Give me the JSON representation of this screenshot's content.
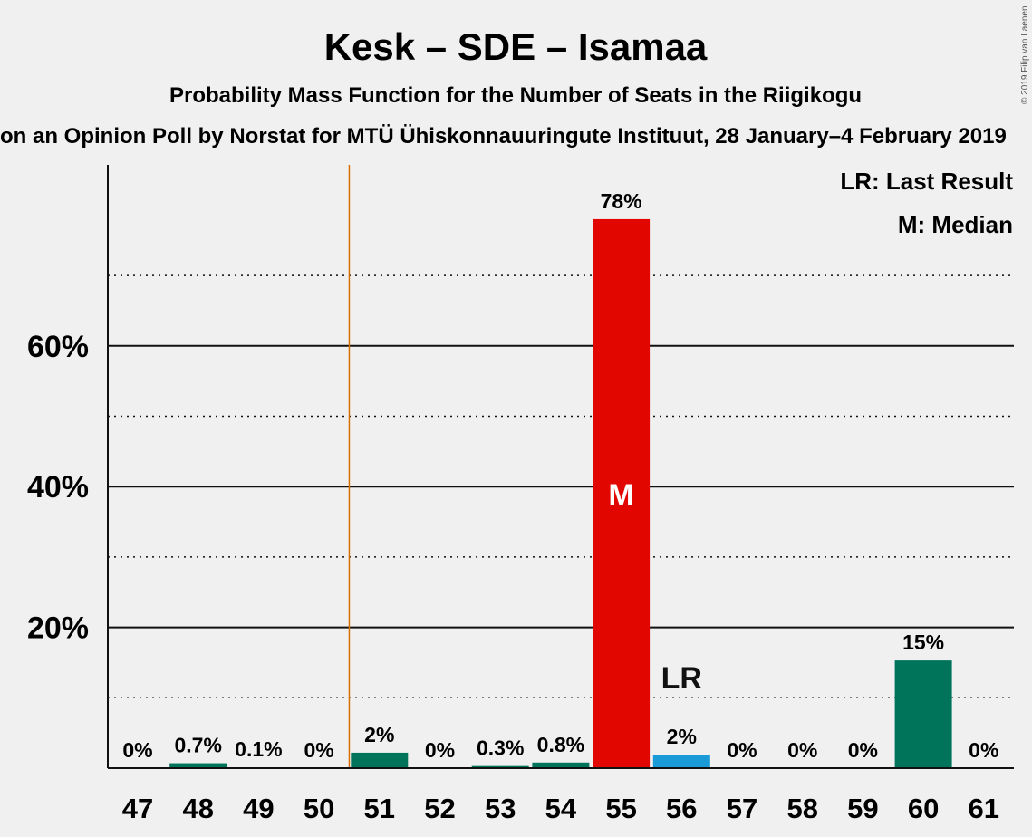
{
  "title": "Kesk – SDE – Isamaa",
  "subtitle": "Probability Mass Function for the Number of Seats in the Riigikogu",
  "source": "on an Opinion Poll by Norstat for MTÜ Ühiskonnauuringute Instituut, 28 January–4 February 2019",
  "copyright": "© 2019 Filip van Laenen",
  "legend": {
    "last_result": "LR: Last Result",
    "median": "M: Median"
  },
  "markers": {
    "median": "M",
    "last_result": "LR"
  },
  "colors": {
    "default_bar": "#00745a",
    "median_bar": "#e10600",
    "last_result_bar": "#1a9ad6",
    "last_result_line": "#d86e00",
    "text": "#111111"
  },
  "chart_data": {
    "type": "bar",
    "title": "Kesk – SDE – Isamaa",
    "subtitle": "Probability Mass Function for the Number of Seats in the Riigikogu",
    "categories": [
      "47",
      "48",
      "49",
      "50",
      "51",
      "52",
      "53",
      "54",
      "55",
      "56",
      "57",
      "58",
      "59",
      "60",
      "61"
    ],
    "values": [
      0,
      0.7,
      0.1,
      0,
      2.2,
      0,
      0.3,
      0.8,
      78,
      1.9,
      0,
      0,
      0,
      15.3,
      0
    ],
    "labels": [
      "0%",
      "0.7%",
      "0.1%",
      "0%",
      "2%",
      "0%",
      "0.3%",
      "0.8%",
      "78%",
      "2%",
      "0%",
      "0%",
      "0%",
      "15%",
      "0%"
    ],
    "median_seat": "55",
    "last_result_seat": "56",
    "last_result_line_after": "50",
    "y_ticks": [
      20,
      40,
      60
    ],
    "y_tick_labels": [
      "20%",
      "40%",
      "60%"
    ],
    "ylim": [
      0,
      85
    ],
    "grid": true,
    "legend_position": "top-right"
  }
}
